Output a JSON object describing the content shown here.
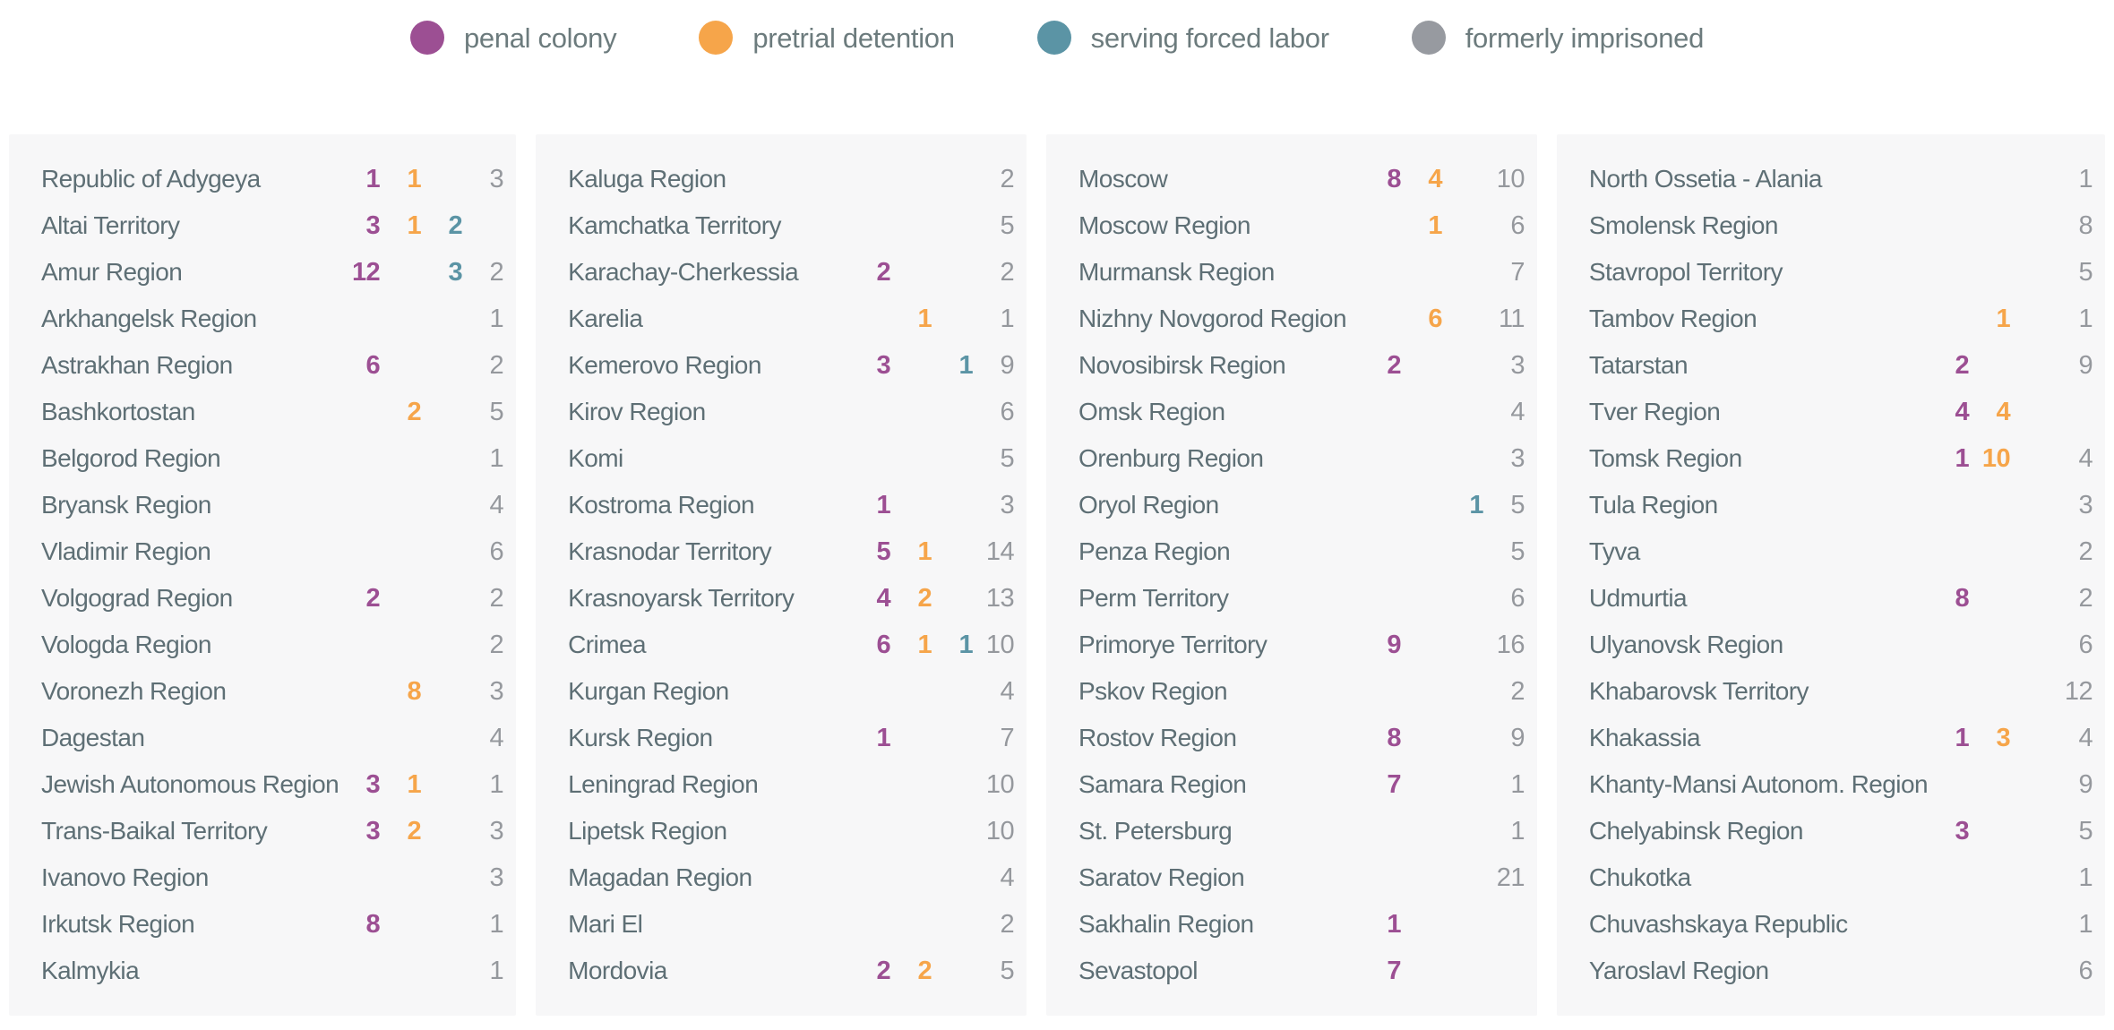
{
  "legend": {
    "items": [
      {
        "name": "penal-colony",
        "label": "penal colony",
        "color": "#9c4f93"
      },
      {
        "name": "pretrial-detention",
        "label": "pretrial detention",
        "color": "#f6a54a"
      },
      {
        "name": "serving-forced-labor",
        "label": "serving forced labor",
        "color": "#5b94a5"
      },
      {
        "name": "formerly-imprisoned",
        "label": "formerly imprisoned",
        "color": "#979aa0"
      }
    ]
  },
  "chart_data": {
    "type": "table",
    "series": [
      "penal colony",
      "pretrial detention",
      "serving forced labor",
      "formerly imprisoned"
    ],
    "series_colors": {
      "penal_colony": "#9c4f93",
      "pretrial_detention": "#f6a54a",
      "serving_forced_labor": "#5b94a5",
      "formerly_imprisoned": "#95989d"
    },
    "row_format": [
      "region",
      "penal_colony",
      "pretrial_detention",
      "serving_forced_labor",
      "formerly_imprisoned"
    ],
    "columns": [
      {
        "rows": [
          [
            "Republic of Adygeya",
            1,
            1,
            null,
            3
          ],
          [
            "Altai Territory",
            3,
            1,
            2,
            null
          ],
          [
            "Amur Region",
            12,
            null,
            3,
            2
          ],
          [
            "Arkhangelsk Region",
            null,
            null,
            null,
            1
          ],
          [
            "Astrakhan Region",
            6,
            null,
            null,
            2
          ],
          [
            "Bashkortostan",
            null,
            2,
            null,
            5
          ],
          [
            "Belgorod Region",
            null,
            null,
            null,
            1
          ],
          [
            "Bryansk Region",
            null,
            null,
            null,
            4
          ],
          [
            "Vladimir Region",
            null,
            null,
            null,
            6
          ],
          [
            "Volgograd Region",
            2,
            null,
            null,
            2
          ],
          [
            "Vologda Region",
            null,
            null,
            null,
            2
          ],
          [
            "Voronezh Region",
            null,
            8,
            null,
            3
          ],
          [
            "Dagestan",
            null,
            null,
            null,
            4
          ],
          [
            "Jewish Autonomous Region",
            3,
            1,
            null,
            1
          ],
          [
            "Trans-Baikal Territory",
            3,
            2,
            null,
            3
          ],
          [
            "Ivanovo Region",
            null,
            null,
            null,
            3
          ],
          [
            "Irkutsk Region",
            8,
            null,
            null,
            1
          ],
          [
            "Kalmykia",
            null,
            null,
            null,
            1
          ]
        ]
      },
      {
        "rows": [
          [
            "Kaluga Region",
            null,
            null,
            null,
            2
          ],
          [
            "Kamchatka Territory",
            null,
            null,
            null,
            5
          ],
          [
            "Karachay-Cherkessia",
            2,
            null,
            null,
            2
          ],
          [
            "Karelia",
            null,
            1,
            null,
            1
          ],
          [
            "Kemerovo Region",
            3,
            null,
            1,
            9
          ],
          [
            "Kirov Region",
            null,
            null,
            null,
            6
          ],
          [
            "Komi",
            null,
            null,
            null,
            5
          ],
          [
            "Kostroma Region",
            1,
            null,
            null,
            3
          ],
          [
            "Krasnodar Territory",
            5,
            1,
            null,
            14
          ],
          [
            "Krasnoyarsk Territory",
            4,
            2,
            null,
            13
          ],
          [
            "Crimea",
            6,
            1,
            1,
            10
          ],
          [
            "Kurgan Region",
            null,
            null,
            null,
            4
          ],
          [
            "Kursk Region",
            1,
            null,
            null,
            7
          ],
          [
            "Leningrad Region",
            null,
            null,
            null,
            10
          ],
          [
            "Lipetsk Region",
            null,
            null,
            null,
            10
          ],
          [
            "Magadan Region",
            null,
            null,
            null,
            4
          ],
          [
            "Mari El",
            null,
            null,
            null,
            2
          ],
          [
            "Mordovia",
            2,
            2,
            null,
            5
          ]
        ]
      },
      {
        "rows": [
          [
            "Moscow",
            8,
            4,
            null,
            10
          ],
          [
            "Moscow Region",
            null,
            1,
            null,
            6
          ],
          [
            "Murmansk Region",
            null,
            null,
            null,
            7
          ],
          [
            "Nizhny Novgorod Region",
            null,
            6,
            null,
            11
          ],
          [
            "Novosibirsk Region",
            2,
            null,
            null,
            3
          ],
          [
            "Omsk Region",
            null,
            null,
            null,
            4
          ],
          [
            "Orenburg Region",
            null,
            null,
            null,
            3
          ],
          [
            "Oryol Region",
            null,
            null,
            1,
            5
          ],
          [
            "Penza Region",
            null,
            null,
            null,
            5
          ],
          [
            "Perm Territory",
            null,
            null,
            null,
            6
          ],
          [
            "Primorye Territory",
            9,
            null,
            null,
            16
          ],
          [
            "Pskov Region",
            null,
            null,
            null,
            2
          ],
          [
            "Rostov Region",
            8,
            null,
            null,
            9
          ],
          [
            "Samara Region",
            7,
            null,
            null,
            1
          ],
          [
            "St. Petersburg",
            null,
            null,
            null,
            1
          ],
          [
            "Saratov Region",
            null,
            null,
            null,
            21
          ],
          [
            "Sakhalin Region",
            1,
            null,
            null,
            null
          ],
          [
            "Sevastopol",
            7,
            null,
            null,
            null
          ]
        ]
      },
      {
        "rows": [
          [
            "North Ossetia - Alania",
            null,
            null,
            null,
            1
          ],
          [
            "Smolensk Region",
            null,
            null,
            null,
            8
          ],
          [
            "Stavropol Territory",
            null,
            null,
            null,
            5
          ],
          [
            "Tambov Region",
            null,
            1,
            null,
            1
          ],
          [
            "Tatarstan",
            2,
            null,
            null,
            9
          ],
          [
            "Tver Region",
            4,
            4,
            null,
            null
          ],
          [
            "Tomsk Region",
            1,
            10,
            null,
            4
          ],
          [
            "Tula Region",
            null,
            null,
            null,
            3
          ],
          [
            "Tyva",
            null,
            null,
            null,
            2
          ],
          [
            "Udmurtia",
            8,
            null,
            null,
            2
          ],
          [
            "Ulyanovsk Region",
            null,
            null,
            null,
            6
          ],
          [
            "Khabarovsk Territory",
            null,
            null,
            null,
            12
          ],
          [
            "Khakassia",
            1,
            3,
            null,
            4
          ],
          [
            "Khanty-Mansi Autonom. Region",
            null,
            null,
            null,
            9
          ],
          [
            "Chelyabinsk Region",
            3,
            null,
            null,
            5
          ],
          [
            "Chukotka",
            null,
            null,
            null,
            1
          ],
          [
            "Chuvashskaya Republic",
            null,
            null,
            null,
            1
          ],
          [
            "Yaroslavl Region",
            null,
            null,
            null,
            6
          ]
        ]
      }
    ]
  }
}
